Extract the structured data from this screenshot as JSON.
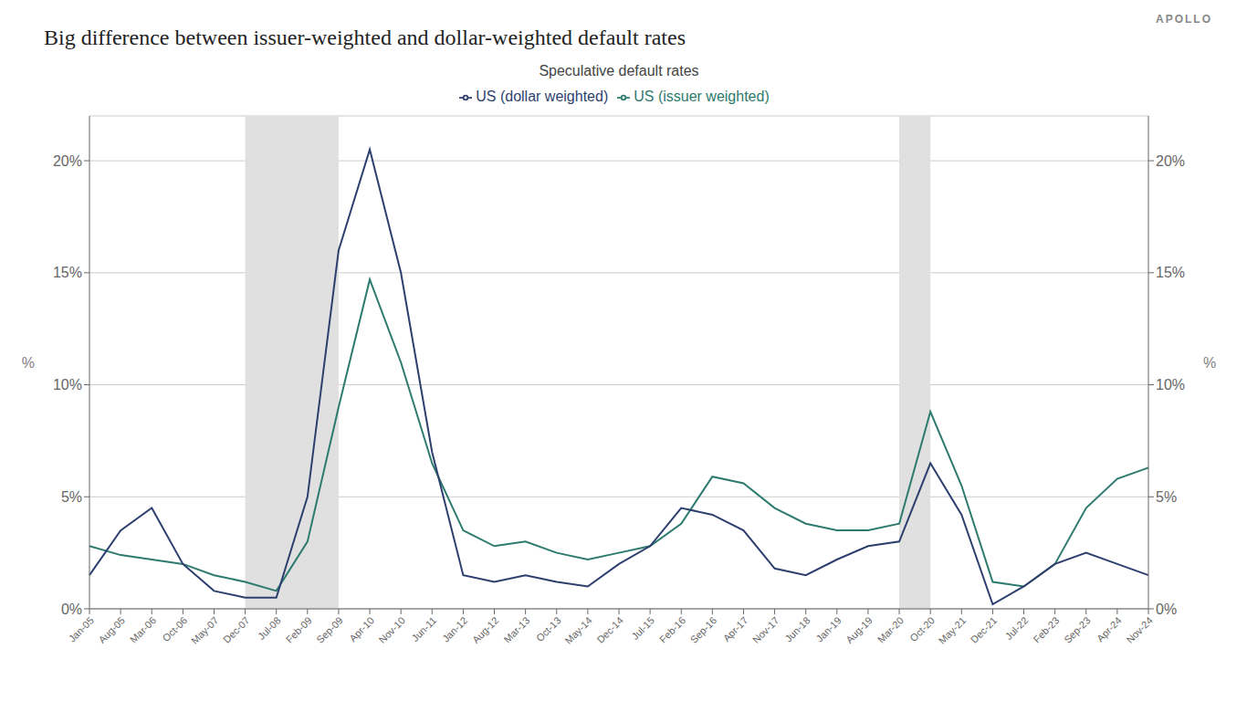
{
  "chart_data": {
    "type": "line",
    "title": "Big difference between issuer-weighted and dollar-weighted default rates",
    "subtitle": "Speculative default rates",
    "annotations": [
      "APOLLO"
    ],
    "ylabel": "%",
    "y2label": "%",
    "ylim": [
      0,
      22
    ],
    "yticks": [
      {
        "value": 0,
        "label": "0%"
      },
      {
        "value": 5,
        "label": "5%"
      },
      {
        "value": 10,
        "label": "10%"
      },
      {
        "value": 15,
        "label": "15%"
      },
      {
        "value": 20,
        "label": "20%"
      }
    ],
    "y2lim": [
      0,
      22
    ],
    "y2ticks": [
      {
        "value": 0,
        "label": "0%"
      },
      {
        "value": 5,
        "label": "5%"
      },
      {
        "value": 10,
        "label": "10%"
      },
      {
        "value": 15,
        "label": "15%"
      },
      {
        "value": 20,
        "label": "20%"
      }
    ],
    "grid": true,
    "legend": "top",
    "shaded_regions": [
      {
        "start": "Dec-07",
        "end": "Sep-09",
        "color": "#e0e0e0"
      },
      {
        "start": "Mar-20",
        "end": "Oct-20",
        "color": "#e0e0e0"
      }
    ],
    "categories": [
      "Jan-05",
      "Aug-05",
      "Mar-06",
      "Oct-06",
      "May-07",
      "Dec-07",
      "Jul-08",
      "Feb-09",
      "Sep-09",
      "Apr-10",
      "Nov-10",
      "Jun-11",
      "Jan-12",
      "Aug-12",
      "Mar-13",
      "Oct-13",
      "May-14",
      "Dec-14",
      "Jul-15",
      "Feb-16",
      "Sep-16",
      "Apr-17",
      "Nov-17",
      "Jun-18",
      "Jan-19",
      "Aug-19",
      "Mar-20",
      "Oct-20",
      "May-21",
      "Dec-21",
      "Jul-22",
      "Feb-23",
      "Sep-23",
      "Apr-24",
      "Nov-24"
    ],
    "series": [
      {
        "name": "US (issuer weighted)",
        "color": "#2d7a6e",
        "values": [
          2.8,
          2.4,
          2.2,
          2.0,
          1.5,
          1.2,
          0.8,
          3.0,
          9.0,
          14.7,
          11.0,
          6.5,
          3.5,
          2.8,
          3.0,
          2.5,
          2.2,
          2.5,
          2.8,
          3.8,
          5.9,
          5.6,
          4.5,
          3.8,
          3.5,
          3.5,
          3.8,
          8.8,
          5.5,
          1.2,
          1.0,
          2.0,
          4.5,
          5.8,
          6.3
        ]
      },
      {
        "name": "US (dollar weighted)",
        "color": "#2d3f6e",
        "values": [
          1.5,
          3.5,
          4.5,
          2.0,
          0.8,
          0.5,
          0.5,
          5.0,
          16.0,
          20.5,
          15.0,
          7.0,
          1.5,
          1.2,
          1.5,
          1.2,
          1.0,
          2.0,
          2.8,
          4.5,
          4.2,
          3.5,
          1.8,
          1.5,
          2.2,
          2.8,
          3.0,
          6.5,
          4.2,
          0.2,
          1.0,
          2.0,
          2.5,
          2.0,
          1.5
        ]
      }
    ]
  }
}
